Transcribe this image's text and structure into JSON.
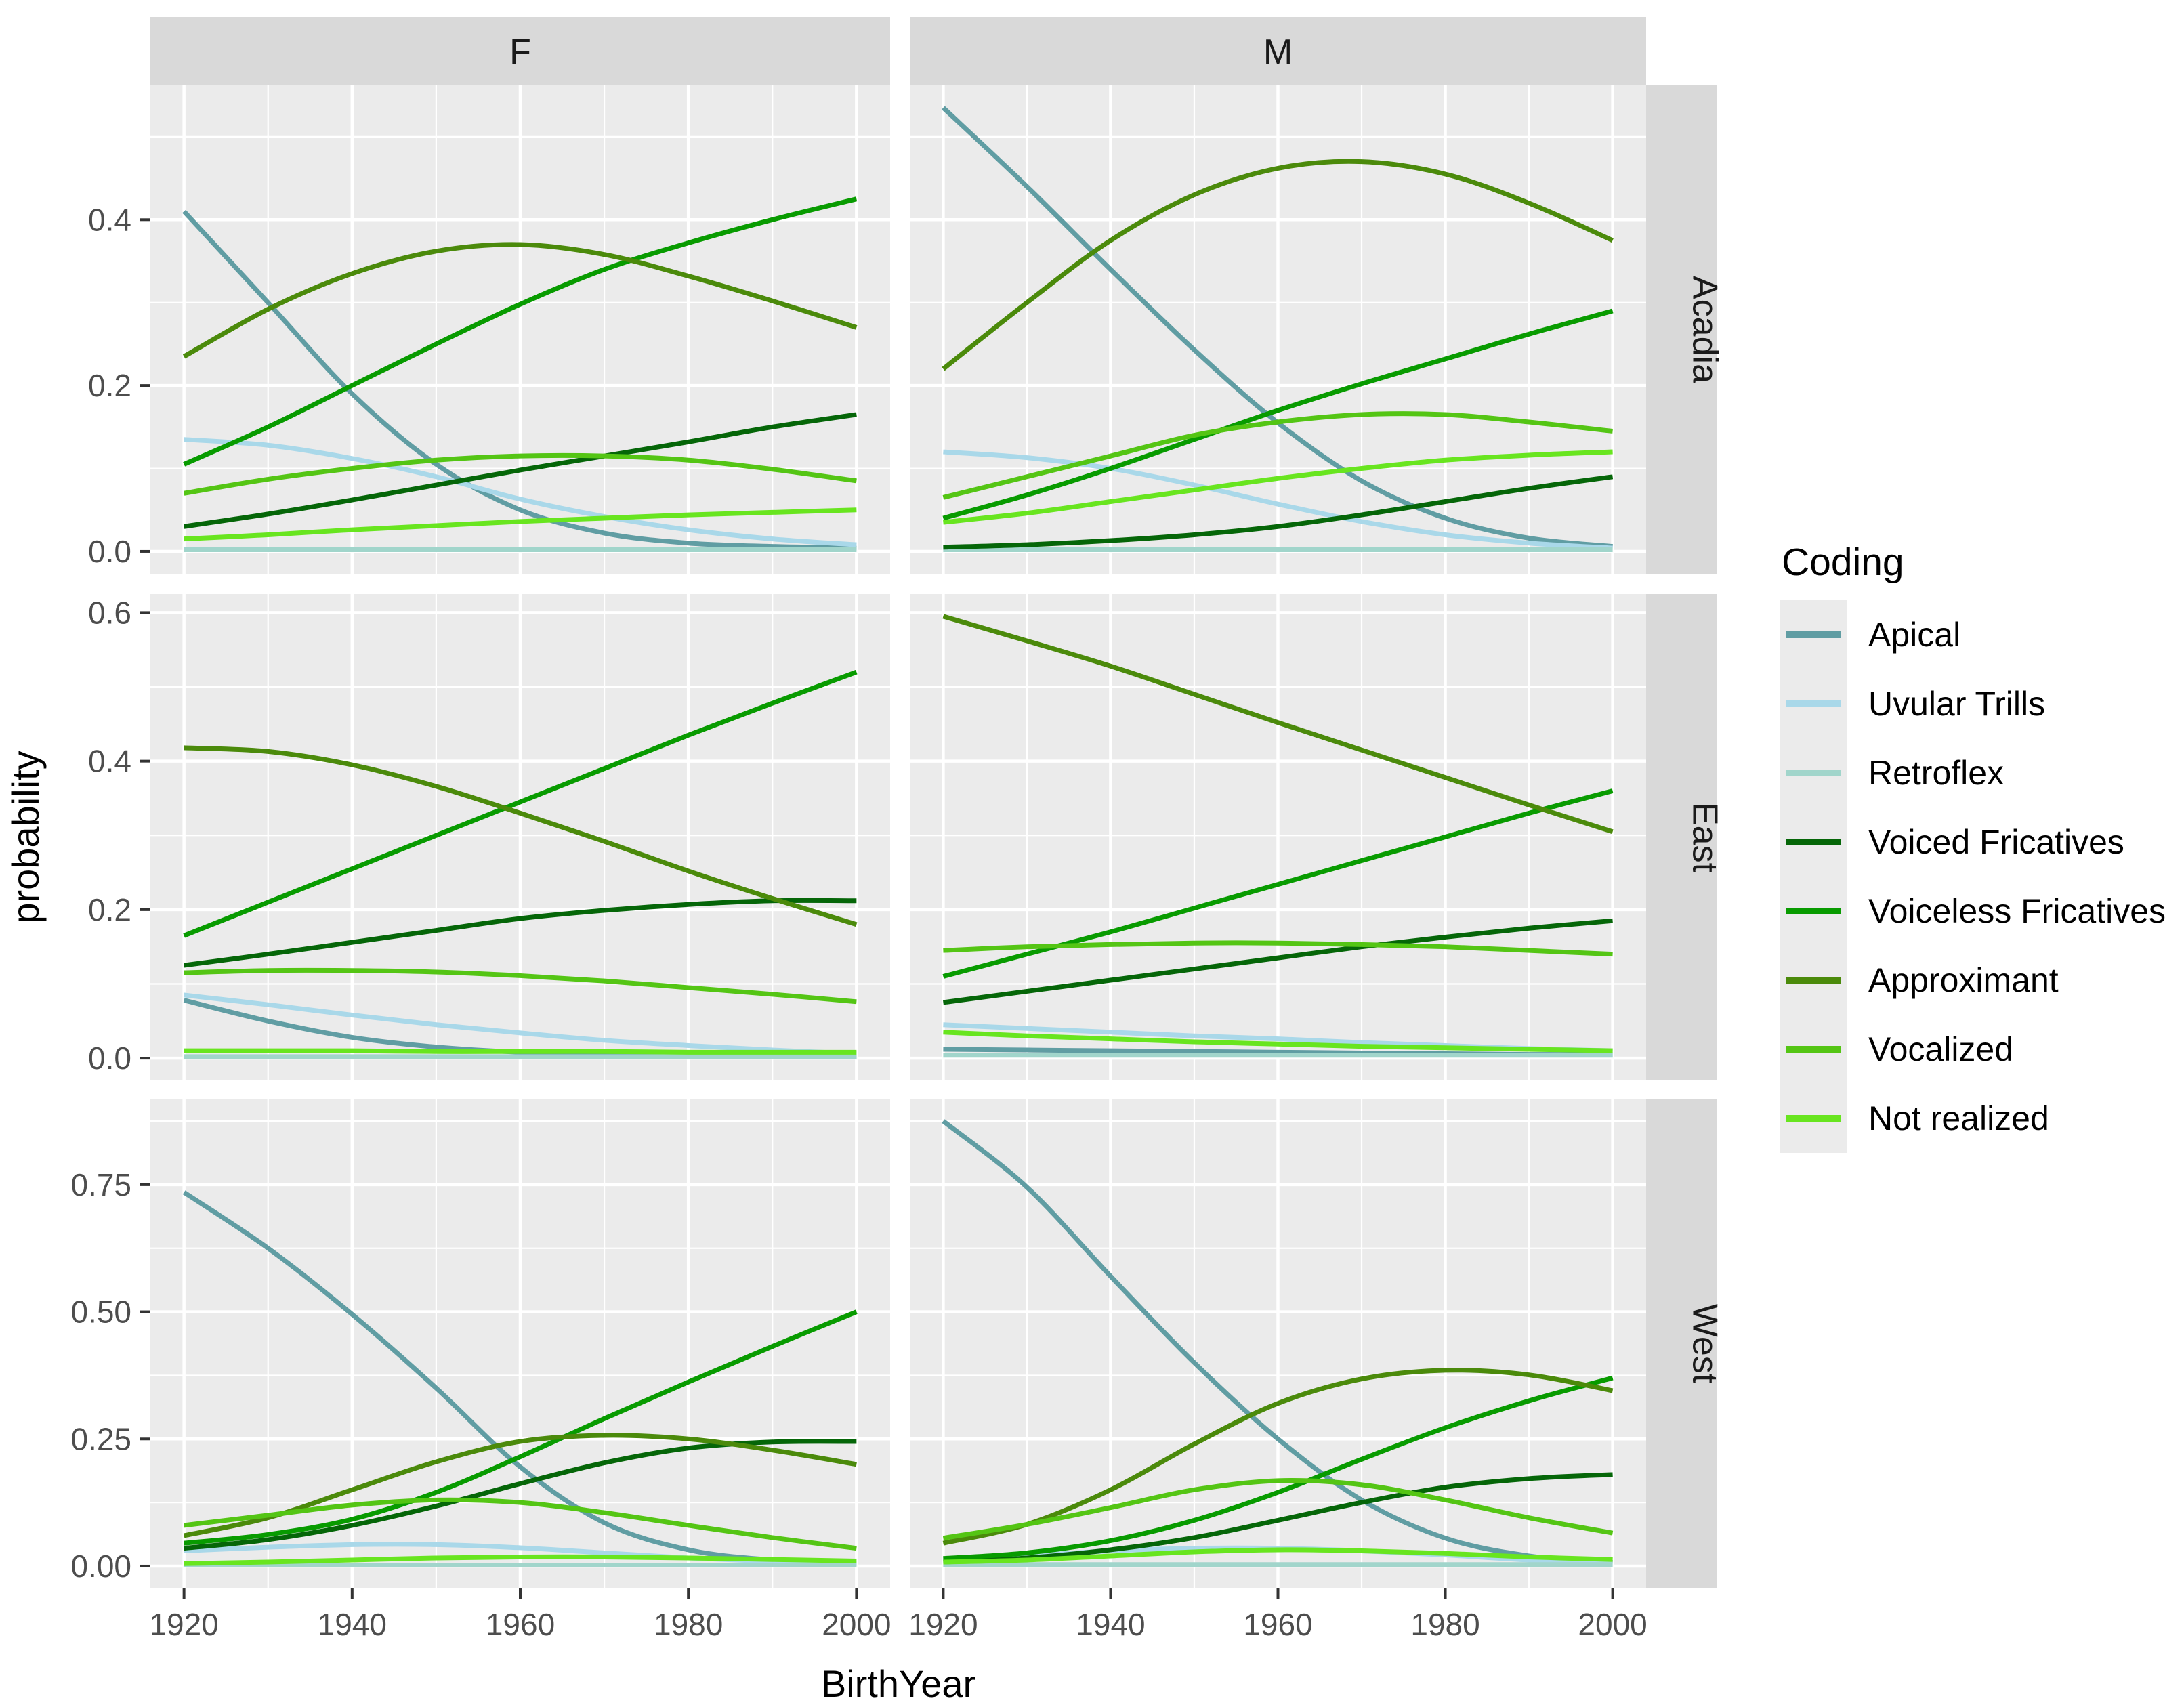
{
  "colors": {
    "panel_bg": "#EBEBEB",
    "strip_bg": "#D9D9D9",
    "grid": "#FFFFFF",
    "tick_mark": "#333333",
    "tick_text": "#4D4D4D",
    "text": "#000000"
  },
  "chart_data": {
    "type": "line",
    "xlabel": "BirthYear",
    "ylabel": "probability",
    "legend_title": "Coding",
    "legend_position": "right",
    "grid": true,
    "facet_cols": [
      "F",
      "M"
    ],
    "facet_rows": [
      "Acadia",
      "East",
      "West"
    ],
    "x": [
      1920,
      1930,
      1940,
      1950,
      1960,
      1970,
      1980,
      1990,
      2000
    ],
    "x_domain": [
      1916,
      2004
    ],
    "x_major_ticks": [
      1920,
      1940,
      1960,
      1980,
      2000
    ],
    "x_tick_labels": [
      "1920",
      "1940",
      "1960",
      "1980",
      "2000"
    ],
    "x_minor_ticks": [
      1930,
      1950,
      1970,
      1990
    ],
    "series": [
      {
        "name": "Apical",
        "color": "#609DA3"
      },
      {
        "name": "Uvular Trills",
        "color": "#A9D8E9"
      },
      {
        "name": "Retroflex",
        "color": "#A1D5CB"
      },
      {
        "name": "Voiced Fricatives",
        "color": "#056608"
      },
      {
        "name": "Voiceless Fricatives",
        "color": "#089B00"
      },
      {
        "name": "Approximant",
        "color": "#4B8A0B"
      },
      {
        "name": "Vocalized",
        "color": "#54C514"
      },
      {
        "name": "Not realized",
        "color": "#68E51F"
      }
    ],
    "rows": [
      {
        "name": "Acadia",
        "y_domain": [
          -0.027,
          0.562
        ],
        "y_major_ticks": [
          0.0,
          0.2,
          0.4
        ],
        "y_tick_labels": [
          "0.0",
          "0.2",
          "0.4"
        ],
        "y_minor_ticks": [
          0.1,
          0.3,
          0.5
        ],
        "panels": {
          "F": {
            "Apical": [
              0.41,
              0.3,
              0.19,
              0.105,
              0.05,
              0.022,
              0.01,
              0.006,
              0.004
            ],
            "Uvular Trills": [
              0.135,
              0.128,
              0.112,
              0.09,
              0.063,
              0.042,
              0.026,
              0.015,
              0.008
            ],
            "Retroflex": [
              0.002,
              0.002,
              0.002,
              0.002,
              0.002,
              0.002,
              0.002,
              0.002,
              0.002
            ],
            "Voiced Fricatives": [
              0.03,
              0.045,
              0.062,
              0.08,
              0.098,
              0.115,
              0.132,
              0.15,
              0.165
            ],
            "Voiceless Fricatives": [
              0.105,
              0.15,
              0.2,
              0.25,
              0.298,
              0.34,
              0.372,
              0.4,
              0.425
            ],
            "Approximant": [
              0.235,
              0.292,
              0.335,
              0.362,
              0.37,
              0.358,
              0.332,
              0.302,
              0.27
            ],
            "Vocalized": [
              0.07,
              0.087,
              0.1,
              0.11,
              0.115,
              0.115,
              0.11,
              0.099,
              0.085
            ],
            "Not realized": [
              0.015,
              0.02,
              0.026,
              0.031,
              0.036,
              0.04,
              0.044,
              0.047,
              0.05
            ]
          },
          "M": {
            "Apical": [
              0.535,
              0.44,
              0.34,
              0.243,
              0.155,
              0.085,
              0.04,
              0.016,
              0.006
            ],
            "Uvular Trills": [
              0.12,
              0.113,
              0.1,
              0.08,
              0.057,
              0.036,
              0.02,
              0.01,
              0.004
            ],
            "Retroflex": [
              0.002,
              0.002,
              0.002,
              0.002,
              0.002,
              0.002,
              0.002,
              0.002,
              0.002
            ],
            "Voiced Fricatives": [
              0.005,
              0.008,
              0.013,
              0.02,
              0.03,
              0.044,
              0.06,
              0.076,
              0.09
            ],
            "Voiceless Fricatives": [
              0.04,
              0.068,
              0.1,
              0.135,
              0.17,
              0.202,
              0.232,
              0.262,
              0.29
            ],
            "Approximant": [
              0.22,
              0.3,
              0.375,
              0.43,
              0.462,
              0.47,
              0.455,
              0.42,
              0.375
            ],
            "Vocalized": [
              0.065,
              0.09,
              0.115,
              0.14,
              0.156,
              0.165,
              0.165,
              0.156,
              0.145
            ],
            "Not realized": [
              0.035,
              0.046,
              0.06,
              0.074,
              0.088,
              0.1,
              0.11,
              0.116,
              0.12
            ]
          }
        }
      },
      {
        "name": "East",
        "y_domain": [
          -0.03,
          0.625
        ],
        "y_major_ticks": [
          0.0,
          0.2,
          0.4,
          0.6
        ],
        "y_tick_labels": [
          "0.0",
          "0.2",
          "0.4",
          "0.6"
        ],
        "y_minor_ticks": [
          0.1,
          0.3,
          0.5
        ],
        "panels": {
          "F": {
            "Apical": [
              0.078,
              0.05,
              0.028,
              0.015,
              0.008,
              0.005,
              0.003,
              0.002,
              0.002
            ],
            "Uvular Trills": [
              0.085,
              0.072,
              0.058,
              0.045,
              0.034,
              0.024,
              0.017,
              0.011,
              0.006
            ],
            "Retroflex": [
              0.002,
              0.002,
              0.002,
              0.002,
              0.002,
              0.002,
              0.002,
              0.002,
              0.002
            ],
            "Voiced Fricatives": [
              0.125,
              0.14,
              0.156,
              0.172,
              0.188,
              0.199,
              0.207,
              0.212,
              0.212
            ],
            "Voiceless Fricatives": [
              0.165,
              0.21,
              0.255,
              0.3,
              0.345,
              0.39,
              0.435,
              0.478,
              0.52
            ],
            "Approximant": [
              0.418,
              0.413,
              0.395,
              0.366,
              0.33,
              0.292,
              0.252,
              0.215,
              0.18
            ],
            "Vocalized": [
              0.115,
              0.118,
              0.118,
              0.116,
              0.111,
              0.104,
              0.095,
              0.086,
              0.076
            ],
            "Not realized": [
              0.01,
              0.01,
              0.01,
              0.009,
              0.009,
              0.009,
              0.008,
              0.008,
              0.008
            ]
          },
          "M": {
            "Apical": [
              0.012,
              0.011,
              0.01,
              0.009,
              0.008,
              0.007,
              0.006,
              0.005,
              0.005
            ],
            "Uvular Trills": [
              0.045,
              0.04,
              0.035,
              0.03,
              0.026,
              0.021,
              0.017,
              0.013,
              0.01
            ],
            "Retroflex": [
              0.004,
              0.004,
              0.004,
              0.004,
              0.004,
              0.004,
              0.004,
              0.004,
              0.004
            ],
            "Voiced Fricatives": [
              0.075,
              0.09,
              0.105,
              0.12,
              0.135,
              0.15,
              0.163,
              0.175,
              0.185
            ],
            "Voiceless Fricatives": [
              0.11,
              0.14,
              0.17,
              0.202,
              0.234,
              0.266,
              0.298,
              0.33,
              0.36
            ],
            "Approximant": [
              0.595,
              0.562,
              0.528,
              0.49,
              0.452,
              0.415,
              0.378,
              0.341,
              0.305
            ],
            "Vocalized": [
              0.145,
              0.15,
              0.153,
              0.155,
              0.155,
              0.153,
              0.15,
              0.145,
              0.14
            ],
            "Not realized": [
              0.035,
              0.03,
              0.026,
              0.022,
              0.019,
              0.016,
              0.014,
              0.012,
              0.01
            ]
          }
        }
      },
      {
        "name": "West",
        "y_domain": [
          -0.044,
          0.919
        ],
        "y_major_ticks": [
          0.0,
          0.25,
          0.5,
          0.75
        ],
        "y_tick_labels": [
          "0.00",
          "0.25",
          "0.50",
          "0.75"
        ],
        "y_minor_ticks": [
          0.125,
          0.375,
          0.625,
          0.875
        ],
        "panels": {
          "F": {
            "Apical": [
              0.735,
              0.625,
              0.495,
              0.35,
              0.195,
              0.085,
              0.032,
              0.012,
              0.005
            ],
            "Uvular Trills": [
              0.03,
              0.037,
              0.042,
              0.042,
              0.036,
              0.026,
              0.016,
              0.009,
              0.005
            ],
            "Retroflex": [
              0.002,
              0.002,
              0.002,
              0.002,
              0.002,
              0.002,
              0.002,
              0.002,
              0.002
            ],
            "Voiced Fricatives": [
              0.035,
              0.052,
              0.08,
              0.118,
              0.162,
              0.203,
              0.232,
              0.244,
              0.245
            ],
            "Voiceless Fricatives": [
              0.045,
              0.062,
              0.092,
              0.145,
              0.215,
              0.29,
              0.362,
              0.432,
              0.5
            ],
            "Approximant": [
              0.06,
              0.095,
              0.15,
              0.205,
              0.245,
              0.257,
              0.25,
              0.228,
              0.2
            ],
            "Vocalized": [
              0.08,
              0.1,
              0.12,
              0.13,
              0.125,
              0.105,
              0.08,
              0.056,
              0.035
            ],
            "Not realized": [
              0.005,
              0.008,
              0.012,
              0.016,
              0.018,
              0.018,
              0.016,
              0.013,
              0.01
            ]
          },
          "M": {
            "Apical": [
              0.875,
              0.745,
              0.57,
              0.4,
              0.25,
              0.13,
              0.055,
              0.02,
              0.007
            ],
            "Uvular Trills": [
              0.01,
              0.02,
              0.03,
              0.035,
              0.035,
              0.03,
              0.022,
              0.012,
              0.006
            ],
            "Retroflex": [
              0.003,
              0.003,
              0.003,
              0.003,
              0.003,
              0.003,
              0.003,
              0.003,
              0.003
            ],
            "Voiced Fricatives": [
              0.008,
              0.016,
              0.032,
              0.056,
              0.09,
              0.125,
              0.155,
              0.172,
              0.18
            ],
            "Voiceless Fricatives": [
              0.015,
              0.026,
              0.05,
              0.09,
              0.145,
              0.21,
              0.272,
              0.325,
              0.37
            ],
            "Approximant": [
              0.045,
              0.082,
              0.15,
              0.24,
              0.32,
              0.368,
              0.385,
              0.376,
              0.345
            ],
            "Vocalized": [
              0.055,
              0.082,
              0.115,
              0.15,
              0.168,
              0.16,
              0.13,
              0.095,
              0.065
            ],
            "Not realized": [
              0.008,
              0.012,
              0.02,
              0.028,
              0.032,
              0.03,
              0.025,
              0.018,
              0.013
            ]
          }
        }
      }
    ]
  }
}
